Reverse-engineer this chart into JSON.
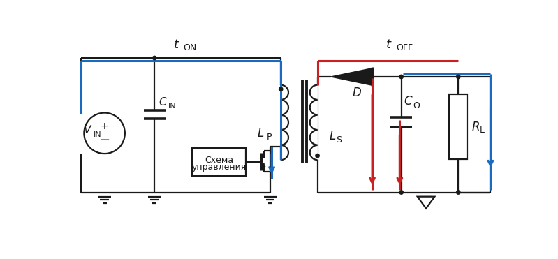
{
  "bg_color": "#ffffff",
  "blue": "#1a6abf",
  "red": "#cc2020",
  "black": "#1a1a1a",
  "t_on_label": "t",
  "t_on_sub": "ON",
  "t_off_label": "t",
  "t_off_sub": "OFF",
  "vin_label": "V",
  "vin_sub": "IN",
  "cin_label": "C",
  "cin_sub": "IN",
  "lp_label": "L",
  "lp_sub": "P",
  "ls_label": "L",
  "ls_sub": "S",
  "d_label": "D",
  "co_label": "C",
  "co_sub": "O",
  "rl_label": "R",
  "rl_sub": "L",
  "ctrl_line1": "Схема",
  "ctrl_line2": "управления"
}
